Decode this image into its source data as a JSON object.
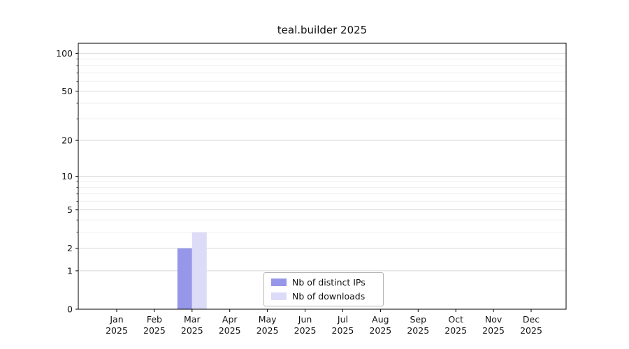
{
  "chart_data": {
    "type": "bar",
    "title": "teal.builder 2025",
    "categories": [
      "Jan 2025",
      "Feb 2025",
      "Mar 2025",
      "Apr 2025",
      "May 2025",
      "Jun 2025",
      "Jul 2025",
      "Aug 2025",
      "Sep 2025",
      "Oct 2025",
      "Nov 2025",
      "Dec 2025"
    ],
    "series": [
      {
        "name": "Nb of distinct IPs",
        "color": "#9797ea",
        "values": [
          0,
          0,
          2,
          0,
          0,
          0,
          0,
          0,
          0,
          0,
          0,
          0
        ]
      },
      {
        "name": "Nb of downloads",
        "color": "#dcdcf8",
        "values": [
          0,
          0,
          3,
          0,
          0,
          0,
          0,
          0,
          0,
          0,
          0,
          0
        ]
      }
    ],
    "yscale": "log1p",
    "yticks": [
      0,
      1,
      2,
      5,
      10,
      20,
      50,
      100
    ],
    "ylim": [
      0,
      120
    ],
    "xlabel": "",
    "ylabel": "",
    "grid": true,
    "legend_position": "bottom-center-inside",
    "background": "#ffffff",
    "frame_color": "#000000",
    "tick_color": "#000000",
    "grid_major_color": "#d9d9d9",
    "grid_minor_color": "#efefef"
  }
}
